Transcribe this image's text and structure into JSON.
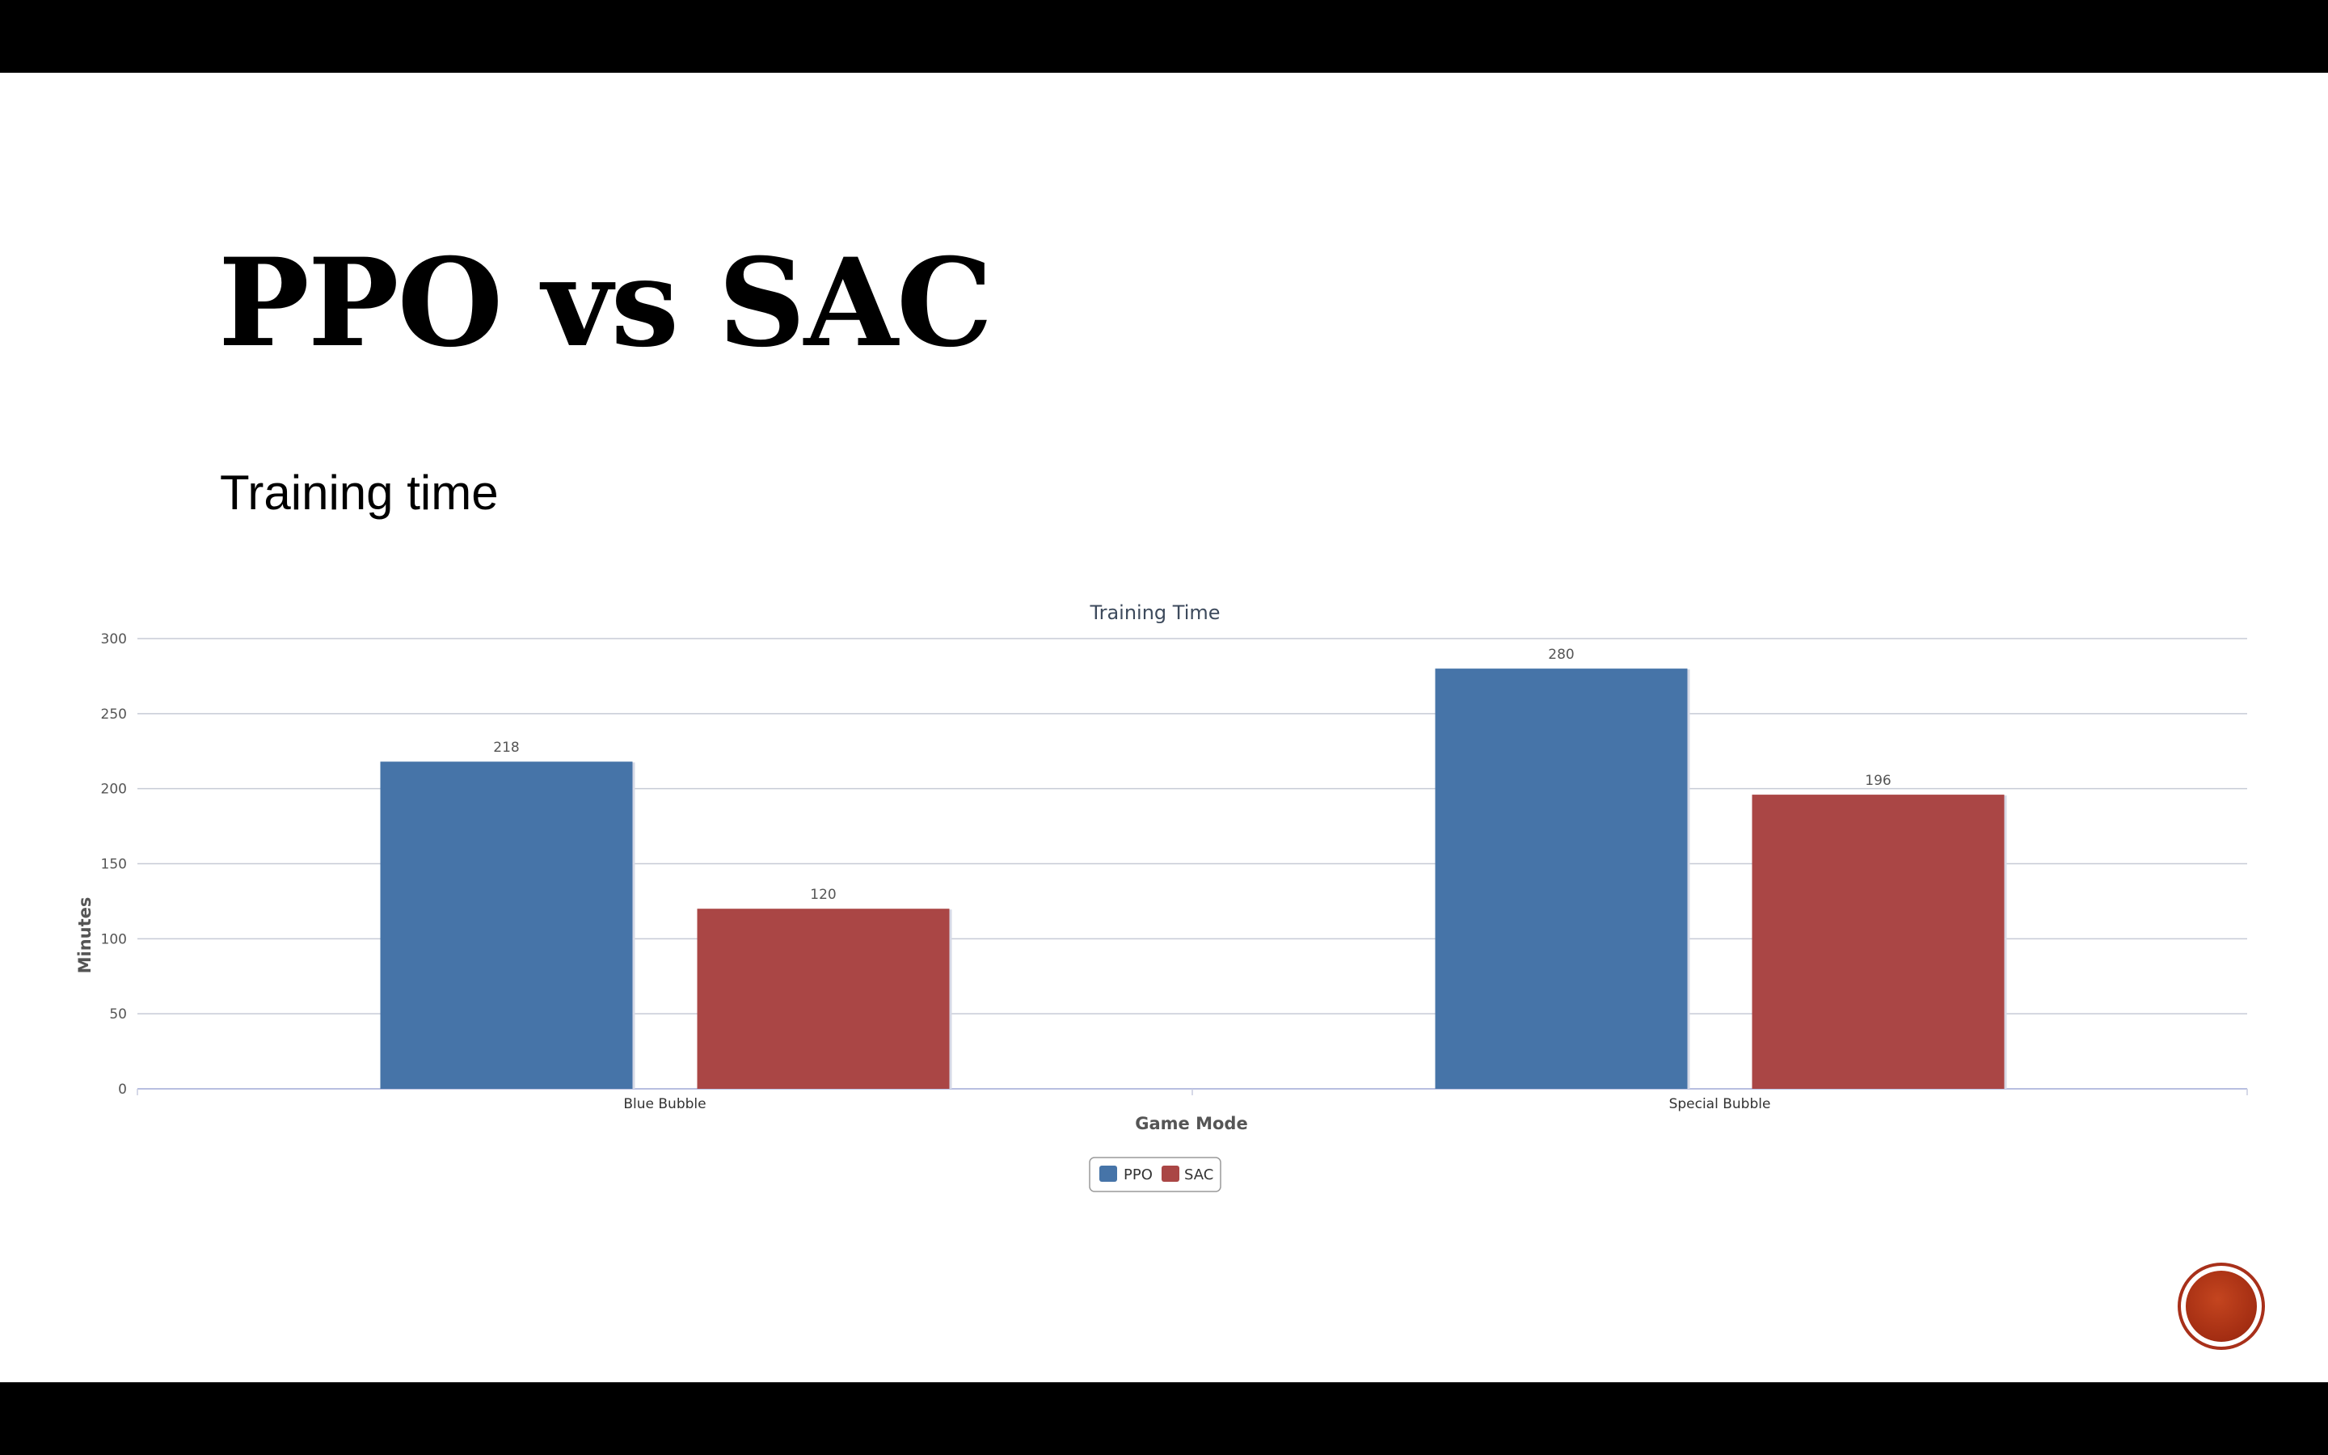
{
  "slide": {
    "title": "PPO vs SAC",
    "subtitle": "Training time"
  },
  "colors": {
    "ppo": "#4674a8",
    "sac": "#aa4645",
    "grid": "#c7cbd6",
    "logo": "#b33a1a"
  },
  "icons": {
    "logo": "red-circle-logo"
  },
  "chart_data": {
    "type": "bar",
    "title": "Training Time",
    "xlabel": "Game Mode",
    "ylabel": "Minutes",
    "categories": [
      "Blue Bubble",
      "Special Bubble"
    ],
    "series": [
      {
        "name": "PPO",
        "values": [
          218,
          280
        ]
      },
      {
        "name": "SAC",
        "values": [
          120,
          196
        ]
      }
    ],
    "ylim": [
      0,
      300
    ],
    "yticks": [
      0,
      50,
      100,
      150,
      200,
      250,
      300
    ],
    "grid": true,
    "data_labels": true,
    "legend": "bottom-center"
  }
}
